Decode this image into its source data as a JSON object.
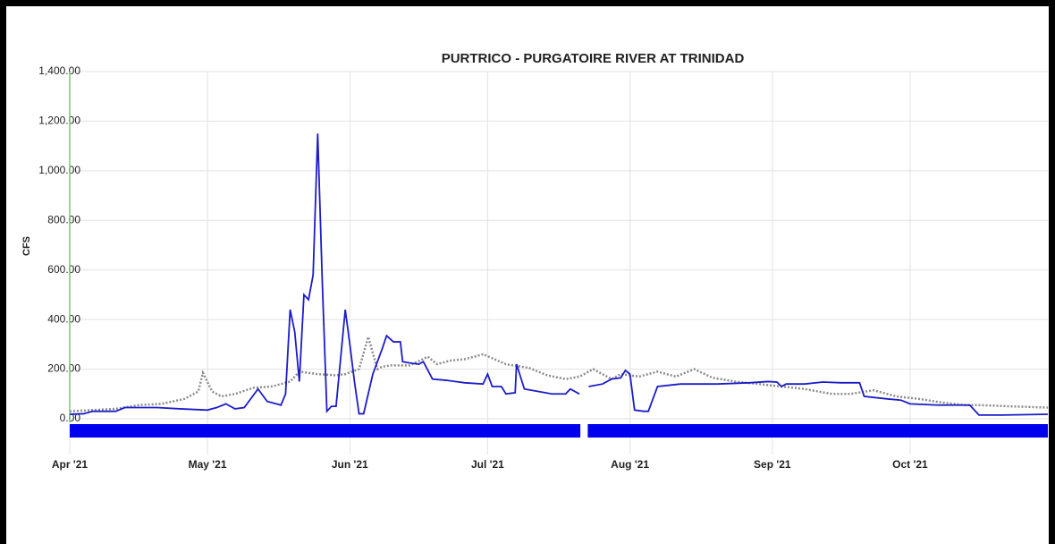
{
  "chart_data": {
    "type": "line",
    "title": "PURTRICO - PURGATOIRE RIVER AT TRINIDAD",
    "ylabel": "CFS",
    "xlim": [
      0,
      213
    ],
    "xticks": [
      {
        "value": 0,
        "label": "Apr '21"
      },
      {
        "value": 30,
        "label": "May '21"
      },
      {
        "value": 61,
        "label": "Jun '21"
      },
      {
        "value": 91,
        "label": "Jul '21"
      },
      {
        "value": 122,
        "label": "Aug '21"
      },
      {
        "value": 153,
        "label": "Sep '21"
      },
      {
        "value": 183,
        "label": "Oct '21"
      }
    ],
    "ylim": [
      0,
      1400
    ],
    "yticks": [
      {
        "value": 0,
        "label": "0.00"
      },
      {
        "value": 200,
        "label": "200.00"
      },
      {
        "value": 400,
        "label": "400.00"
      },
      {
        "value": 600,
        "label": "600.00"
      },
      {
        "value": 800,
        "label": "800.00"
      },
      {
        "value": 1000,
        "label": "1,000.00"
      },
      {
        "value": 1200,
        "label": "1,200.00"
      },
      {
        "value": 1400,
        "label": "1,400.00"
      }
    ],
    "grid": true,
    "series": [
      {
        "color": "#1c1cc8",
        "style": "solid",
        "x": [
          0,
          3,
          5,
          10,
          12,
          19,
          24,
          30,
          32,
          34,
          36,
          38,
          41,
          43,
          45,
          46,
          47,
          48,
          49,
          50,
          51,
          52,
          53,
          54,
          55,
          56,
          57,
          58,
          60,
          61,
          62,
          63,
          64,
          66,
          68,
          69,
          70.5,
          72,
          72.5,
          74,
          76,
          77,
          79,
          82,
          86,
          90,
          91,
          92,
          94,
          95,
          97,
          97.3,
          99,
          102,
          105,
          108,
          109,
          111,
          112,
          113,
          116,
          118,
          120,
          121,
          122,
          123,
          125,
          126,
          128,
          133,
          141,
          148,
          152,
          154,
          155,
          156,
          160,
          164,
          168,
          172,
          173,
          178,
          181,
          183,
          189,
          196,
          198,
          203,
          213
        ],
        "values": [
          18,
          20,
          30,
          30,
          45,
          45,
          40,
          35,
          45,
          60,
          40,
          45,
          120,
          70,
          60,
          55,
          100,
          440,
          350,
          150,
          500,
          480,
          580,
          1150,
          550,
          30,
          50,
          50,
          440,
          300,
          150,
          20,
          20,
          180,
          280,
          335,
          310,
          310,
          230,
          225,
          220,
          230,
          160,
          155,
          145,
          140,
          180,
          130,
          130,
          100,
          105,
          220,
          120,
          110,
          100,
          100,
          120,
          100,
          null,
          130,
          140,
          160,
          165,
          195,
          180,
          35,
          30,
          30,
          130,
          140,
          140,
          145,
          150,
          148,
          130,
          140,
          140,
          148,
          145,
          145,
          90,
          80,
          75,
          60,
          55,
          55,
          15,
          15,
          18
        ]
      },
      {
        "color": "#8c8c8c",
        "style": "dotted",
        "x": [
          0,
          10,
          15,
          20,
          25,
          28,
          29,
          31,
          33,
          36,
          40,
          44,
          48,
          50,
          54,
          58,
          60,
          63,
          65,
          67,
          68,
          70,
          74,
          78,
          80,
          83,
          86,
          90,
          95,
          100,
          104,
          108,
          111,
          114,
          118,
          120,
          124,
          128,
          132,
          136,
          140,
          145,
          150,
          155,
          160,
          163,
          166,
          170,
          175,
          180,
          185,
          190,
          195,
          198,
          205,
          213
        ],
        "values": [
          30,
          40,
          55,
          60,
          80,
          110,
          185,
          110,
          90,
          100,
          125,
          130,
          150,
          190,
          180,
          175,
          180,
          200,
          330,
          200,
          210,
          215,
          215,
          250,
          220,
          235,
          240,
          260,
          220,
          205,
          175,
          160,
          170,
          200,
          160,
          180,
          170,
          190,
          170,
          200,
          165,
          150,
          140,
          130,
          120,
          110,
          100,
          100,
          115,
          90,
          80,
          65,
          55,
          55,
          50,
          45
        ]
      }
    ]
  }
}
